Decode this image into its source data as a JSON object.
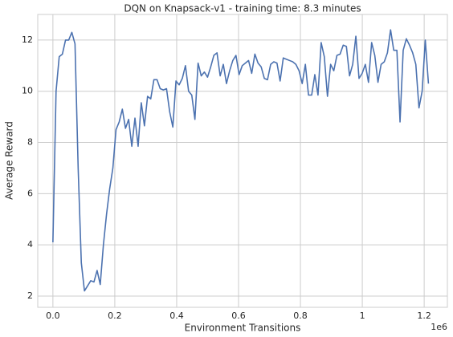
{
  "chart_data": {
    "type": "line",
    "title": "DQN on Knapsack-v1 - training time: 8.3 minutes",
    "x_label": "Environment Transitions",
    "y_label": "Average Reward",
    "x_offset_label": "1e6",
    "x": [
      0,
      10200,
      20400,
      30600,
      40800,
      51000,
      61200,
      71400,
      81600,
      91800,
      102000,
      112200,
      122400,
      132600,
      142800,
      153000,
      163200,
      173400,
      183600,
      193800,
      204000,
      214200,
      224400,
      234600,
      244800,
      255000,
      265200,
      275400,
      285600,
      295800,
      306000,
      316200,
      326400,
      336600,
      346800,
      357000,
      367200,
      377400,
      387600,
      397800,
      408000,
      418200,
      428400,
      438600,
      448800,
      459000,
      469200,
      479400,
      489600,
      499800,
      510000,
      520200,
      530400,
      540600,
      550800,
      561000,
      571200,
      581400,
      591600,
      601800,
      612000,
      622200,
      632400,
      642600,
      652800,
      663000,
      673200,
      683400,
      693600,
      703800,
      714000,
      724200,
      734400,
      744600,
      754800,
      765000,
      775200,
      785400,
      795600,
      805800,
      816000,
      826200,
      836400,
      846600,
      856800,
      867000,
      877200,
      887400,
      897600,
      907800,
      918000,
      928200,
      938400,
      948600,
      958800,
      969000,
      979200,
      989400,
      999600,
      1009800,
      1020000,
      1030200,
      1040400,
      1050600,
      1060800,
      1071000,
      1081200,
      1091400,
      1101600,
      1111800,
      1122000,
      1132200,
      1142400,
      1152600,
      1162800,
      1173000,
      1183200,
      1193400,
      1203600,
      1213800
    ],
    "series": [
      {
        "name": "Average Reward",
        "color": "#4c72b0",
        "values": [
          4.1,
          10.0,
          11.35,
          11.45,
          12.0,
          12.0,
          12.3,
          11.85,
          7.0,
          3.3,
          2.2,
          2.4,
          2.6,
          2.55,
          3.0,
          2.45,
          4.0,
          5.2,
          6.2,
          7.0,
          8.5,
          8.8,
          9.3,
          8.55,
          8.9,
          7.85,
          8.95,
          7.85,
          9.55,
          8.65,
          9.8,
          9.7,
          10.45,
          10.45,
          10.1,
          10.05,
          10.1,
          9.2,
          8.6,
          10.4,
          10.25,
          10.5,
          11.0,
          10.0,
          9.85,
          8.9,
          11.1,
          10.6,
          10.75,
          10.55,
          10.95,
          11.4,
          11.5,
          10.6,
          11.05,
          10.3,
          10.8,
          11.2,
          11.4,
          10.65,
          11.0,
          11.1,
          11.2,
          10.7,
          11.45,
          11.1,
          10.95,
          10.5,
          10.45,
          11.05,
          11.15,
          11.1,
          10.4,
          11.3,
          11.25,
          11.2,
          11.15,
          11.05,
          10.8,
          10.3,
          11.05,
          9.85,
          9.85,
          10.65,
          9.85,
          11.9,
          11.35,
          9.8,
          11.05,
          10.8,
          11.4,
          11.45,
          11.8,
          11.75,
          10.6,
          11.05,
          12.15,
          10.5,
          10.7,
          11.05,
          10.35,
          11.9,
          11.4,
          10.35,
          11.05,
          11.15,
          11.5,
          12.4,
          11.6,
          11.6,
          8.8,
          11.6,
          12.05,
          11.8,
          11.5,
          11.05,
          9.35,
          10.0,
          12.0,
          10.3
        ]
      }
    ],
    "xlim": [
      -49000,
      1275000
    ],
    "xticks": [
      {
        "value": 0,
        "label": "0.0"
      },
      0.2,
      0.4,
      0.6,
      0.8,
      1.0,
      1.2
    ],
    "ylim": [
      1.56,
      13.0
    ],
    "yticks": [
      2,
      4,
      6,
      8,
      10,
      12
    ],
    "grid": true
  }
}
